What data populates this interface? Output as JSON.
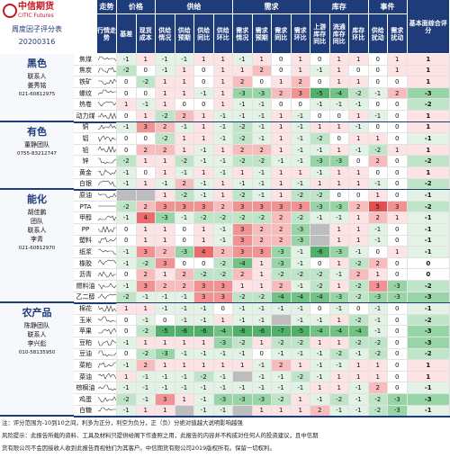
{
  "header": {
    "logo_cn": "中信期货",
    "logo_en": "CITIC Futures",
    "title": "周度因子评分表",
    "date": "20200316",
    "trend_group": "走势",
    "trend_column": "行情走势"
  },
  "column_groups": [
    {
      "name": "价格",
      "columns": [
        "基差",
        "现货成本"
      ]
    },
    {
      "name": "供给",
      "columns": [
        "供给情况",
        "供给预期",
        "供给同比",
        "供给环比"
      ]
    },
    {
      "name": "需求",
      "columns": [
        "需求情况",
        "需求预期",
        "需求同比",
        "需求环比"
      ]
    },
    {
      "name": "库存",
      "columns": [
        "上游库存同比",
        "流通库存同比",
        "库存环比"
      ]
    },
    {
      "name": "事件",
      "columns": [
        "供给扰动",
        "需求扰动"
      ]
    }
  ],
  "total_column": "基本面综合评分",
  "groups": [
    {
      "name": "黑色",
      "contact": [
        "联系人",
        "姜秀铭",
        "021-60812975"
      ],
      "rows": [
        {
          "name": "焦煤",
          "scores": [
            -1,
            1,
            -1,
            -1,
            1,
            1,
            -1,
            1,
            0,
            1,
            0,
            1,
            1,
            0,
            1,
            1
          ]
        },
        {
          "name": "焦炭",
          "scores": [
            -2,
            0,
            -1,
            1,
            0,
            1,
            1,
            2,
            0,
            1,
            -1,
            1,
            0,
            0,
            1,
            1
          ]
        },
        {
          "name": "铁矿",
          "scores": [
            0,
            -2,
            1,
            1,
            0,
            1,
            2,
            0,
            1,
            2,
            0,
            1,
            1,
            0,
            0,
            1
          ]
        },
        {
          "name": "螺纹",
          "scores": [
            0,
            0,
            1,
            1,
            -1,
            1,
            -3,
            -3,
            2,
            3,
            -5,
            -4,
            -2,
            -1,
            2,
            -3
          ]
        },
        {
          "name": "热卷",
          "scores": [
            1,
            -1,
            1,
            0,
            0,
            1,
            -1,
            -1,
            0,
            0,
            -1,
            -1,
            -1,
            0,
            0,
            -2
          ]
        },
        {
          "name": "动力煤",
          "scores": [
            0,
            1,
            -2,
            2,
            1,
            -1,
            -1,
            -1,
            1,
            -1,
            0,
            0,
            1,
            -1,
            0,
            1
          ]
        }
      ]
    },
    {
      "name": "有色",
      "contact": [
        "董静团队",
        "0755-83212747"
      ],
      "rows": [
        {
          "name": "铜",
          "scores": [
            -1,
            3,
            2,
            -1,
            1,
            -1,
            -2,
            -1,
            1,
            -1,
            1,
            1,
            -1,
            0,
            0,
            1
          ]
        },
        {
          "name": "铝",
          "scores": [
            0,
            0,
            -2,
            1,
            1,
            -1,
            -2,
            -1,
            1,
            -1,
            -2,
            0,
            1,
            1,
            0,
            -1
          ]
        },
        {
          "name": "铅",
          "scores": [
            0,
            2,
            2,
            1,
            -1,
            1,
            2,
            2,
            1,
            -1,
            -1,
            1,
            -1,
            -2,
            1,
            1
          ]
        },
        {
          "name": "锌",
          "scores": [
            -2,
            1,
            1,
            -2,
            -1,
            -1,
            -2,
            -2,
            -1,
            -1,
            -3,
            -3,
            0,
            2,
            0,
            -2
          ]
        },
        {
          "name": "黄金",
          "scores": [
            -1,
            0,
            1,
            -1,
            1,
            -1,
            1,
            -1,
            1,
            1,
            -1,
            1,
            1,
            0,
            0,
            1
          ]
        },
        {
          "name": "白银",
          "scores": [
            -1,
            1,
            -1,
            2,
            -1,
            1,
            -1,
            -1,
            1,
            -1,
            1,
            1,
            1,
            -1,
            0,
            -2
          ]
        }
      ]
    },
    {
      "name": "能化",
      "contact": [
        "胡佳鹏",
        "团队",
        "联系人",
        "李青",
        "021-60812970"
      ],
      "rows": [
        {
          "name": "原油",
          "scores": [
            null,
            null,
            1,
            -2,
            -1,
            1,
            -2,
            -1,
            1,
            -2,
            -2,
            0,
            0,
            1,
            0,
            -1
          ]
        },
        {
          "name": "PTA",
          "scores": [
            -2,
            2,
            3,
            3,
            3,
            2,
            3,
            3,
            3,
            3,
            -3,
            -3,
            2,
            5,
            3,
            -2
          ]
        },
        {
          "name": "甲醇",
          "scores": [
            -1,
            4,
            -3,
            -1,
            -2,
            -2,
            -2,
            -2,
            2,
            -2,
            -1,
            -1,
            1,
            2,
            1,
            -1
          ]
        },
        {
          "name": "PP",
          "scores": [
            0,
            1,
            1,
            0,
            1,
            -1,
            3,
            2,
            2,
            -3,
            null,
            1,
            1,
            -1,
            0,
            -1
          ]
        },
        {
          "name": "塑料",
          "scores": [
            0,
            1,
            1,
            0,
            1,
            -1,
            3,
            2,
            2,
            -3,
            null,
            1,
            1,
            -1,
            0,
            -1
          ]
        },
        {
          "name": "纸浆",
          "scores": [
            -1,
            3,
            2,
            -3,
            4,
            2,
            3,
            3,
            -3,
            -1,
            -6,
            -3,
            -1,
            0,
            1,
            -1
          ]
        },
        {
          "name": "橡胶",
          "scores": [
            -1,
            -2,
            3,
            0,
            0,
            -2,
            -4,
            1,
            -3,
            -1,
            0,
            1,
            -2,
            2,
            0,
            0
          ]
        },
        {
          "name": "沥青",
          "scores": [
            0,
            2,
            1,
            2,
            -2,
            -2,
            2,
            1,
            -2,
            -2,
            -2,
            -1,
            2,
            1,
            0,
            0
          ]
        },
        {
          "name": "燃料油",
          "scores": [
            -1,
            3,
            2,
            2,
            3,
            3,
            1,
            1,
            2,
            -1,
            -2,
            1,
            -2,
            3,
            -3,
            -2
          ]
        },
        {
          "name": "乙二醇",
          "scores": [
            -2,
            -1,
            -1,
            -1,
            3,
            3,
            -2,
            -2,
            -4,
            -4,
            -4,
            -3,
            -2,
            -3,
            -3,
            -3
          ]
        }
      ]
    },
    {
      "name": "农产品",
      "contact": [
        "陈静团队",
        "联系人",
        "李兴彪",
        "010-58135950"
      ],
      "rows": [
        {
          "name": "棉花",
          "scores": [
            1,
            1,
            -1,
            -1,
            -1,
            0,
            -1,
            -1,
            -1,
            -1,
            0,
            -1,
            0,
            -1,
            0,
            -1
          ]
        },
        {
          "name": "玉米",
          "scores": [
            0,
            -1,
            0,
            -1,
            -1,
            1,
            -1,
            -1,
            null,
            -1,
            -1,
            1,
            -2,
            -1,
            0,
            -2
          ]
        },
        {
          "name": "苹果",
          "scores": [
            0,
            -2,
            -5,
            -6,
            -6,
            -4,
            -6,
            -6,
            -7,
            -5,
            -4,
            -4,
            -4,
            -1,
            0,
            -3
          ]
        },
        {
          "name": "豆粕",
          "scores": [
            -1,
            1,
            1,
            1,
            1,
            -3,
            -2,
            1,
            -2,
            -2,
            1,
            1,
            -2,
            -2,
            0,
            -3
          ]
        },
        {
          "name": "豆油",
          "scores": [
            0,
            -2,
            -3,
            -1,
            -1,
            -1,
            -1,
            0,
            -1,
            -1,
            -1,
            -2,
            -1,
            -2,
            0,
            -2
          ]
        },
        {
          "name": "菜粕",
          "scores": [
            -1,
            2,
            1,
            1,
            1,
            1,
            1,
            -1,
            2,
            1,
            -1,
            -1,
            1,
            1,
            0,
            1
          ]
        },
        {
          "name": "菜油",
          "scores": [
            1,
            -1,
            -1,
            -1,
            -2,
            -1,
            null,
            -1,
            -1,
            -2,
            -1,
            1,
            1,
            1,
            0,
            1
          ]
        },
        {
          "name": "棕榈油",
          "scores": [
            -1,
            -1,
            -1,
            -1,
            -1,
            -1,
            -1,
            -1,
            -1,
            -1,
            1,
            1,
            -1,
            2,
            0,
            -1
          ]
        },
        {
          "name": "鸡蛋",
          "scores": [
            -2,
            -1,
            3,
            1,
            -1,
            -3,
            -3,
            -3,
            -2,
            1,
            -1,
            -2,
            -1,
            -2,
            -3,
            -3
          ]
        },
        {
          "name": "白糖",
          "scores": [
            -1,
            1,
            1,
            null,
            -1,
            -1,
            null,
            1,
            1,
            1,
            2,
            -1,
            -1,
            -2,
            -3,
            -1
          ]
        }
      ]
    }
  ],
  "notes": [
    "注：评分范围为-10到10之间，利多为正分，利空为负分，正（负）分绝对值越大说明影响越强",
    "风险提示：此报告所载的资料、工具及材料只提供给阁下作查照之用，此报告的内容并不构成对任何人的投资建议，且中信期",
    "货有限公司不会因接收人收到此报告而视他们为其客户。中信期货有限公司2019版权所有。保留一切权利。"
  ]
}
